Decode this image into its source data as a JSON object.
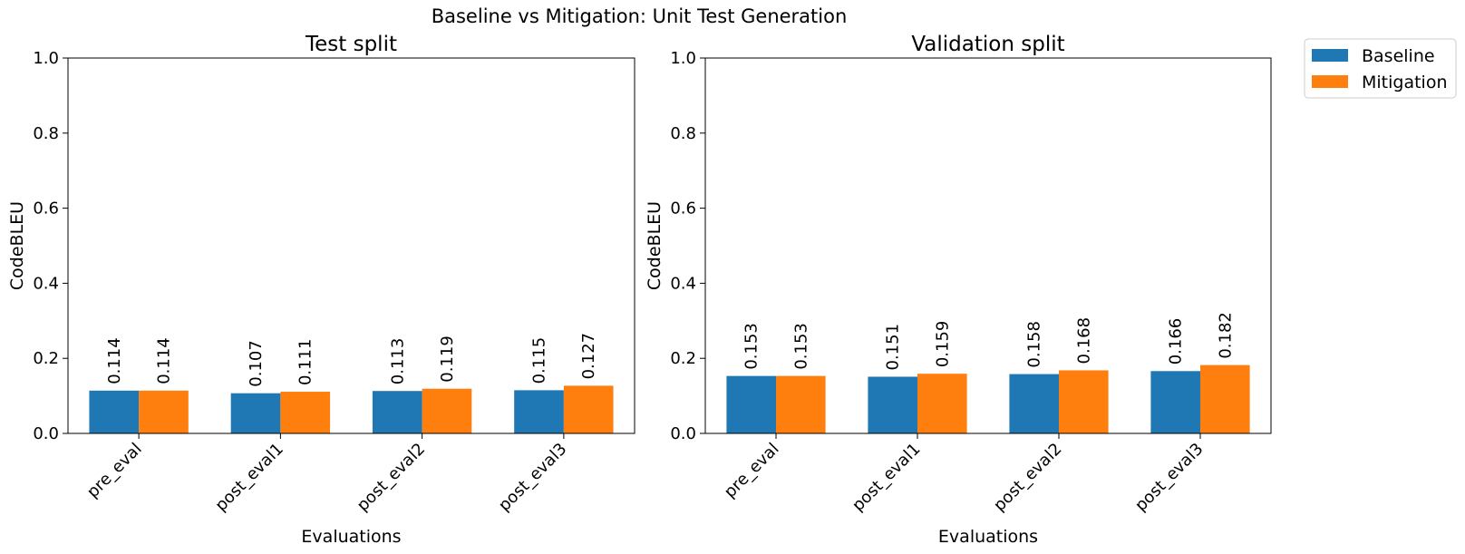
{
  "figure": {
    "title": "Baseline vs Mitigation: Unit Test Generation",
    "legend": {
      "placement": "outside-top-right",
      "entries": [
        {
          "label": "Baseline",
          "color": "#1f77b4"
        },
        {
          "label": "Mitigation",
          "color": "#ff7f0e"
        }
      ]
    }
  },
  "chart_data": [
    {
      "type": "bar",
      "title": "Test split",
      "xlabel": "Evaluations",
      "ylabel": "CodeBLEU",
      "ylim": [
        0,
        1.0
      ],
      "yticks": [
        "0.0",
        "0.2",
        "0.4",
        "0.6",
        "0.8",
        "1.0"
      ],
      "grid": false,
      "categories": [
        "pre_eval",
        "post_eval1",
        "post_eval2",
        "post_eval3"
      ],
      "series": [
        {
          "name": "Baseline",
          "color": "#1f77b4",
          "values": [
            0.114,
            0.107,
            0.113,
            0.115
          ],
          "labels": [
            "0.114",
            "0.107",
            "0.113",
            "0.115"
          ]
        },
        {
          "name": "Mitigation",
          "color": "#ff7f0e",
          "values": [
            0.114,
            0.111,
            0.119,
            0.127
          ],
          "labels": [
            "0.114",
            "0.111",
            "0.119",
            "0.127"
          ]
        }
      ]
    },
    {
      "type": "bar",
      "title": "Validation split",
      "xlabel": "Evaluations",
      "ylabel": "CodeBLEU",
      "ylim": [
        0,
        1.0
      ],
      "yticks": [
        "0.0",
        "0.2",
        "0.4",
        "0.6",
        "0.8",
        "1.0"
      ],
      "grid": false,
      "categories": [
        "pre_eval",
        "post_eval1",
        "post_eval2",
        "post_eval3"
      ],
      "series": [
        {
          "name": "Baseline",
          "color": "#1f77b4",
          "values": [
            0.153,
            0.151,
            0.158,
            0.166
          ],
          "labels": [
            "0.153",
            "0.151",
            "0.158",
            "0.166"
          ]
        },
        {
          "name": "Mitigation",
          "color": "#ff7f0e",
          "values": [
            0.153,
            0.159,
            0.168,
            0.182
          ],
          "labels": [
            "0.153",
            "0.159",
            "0.168",
            "0.182"
          ]
        }
      ]
    }
  ]
}
